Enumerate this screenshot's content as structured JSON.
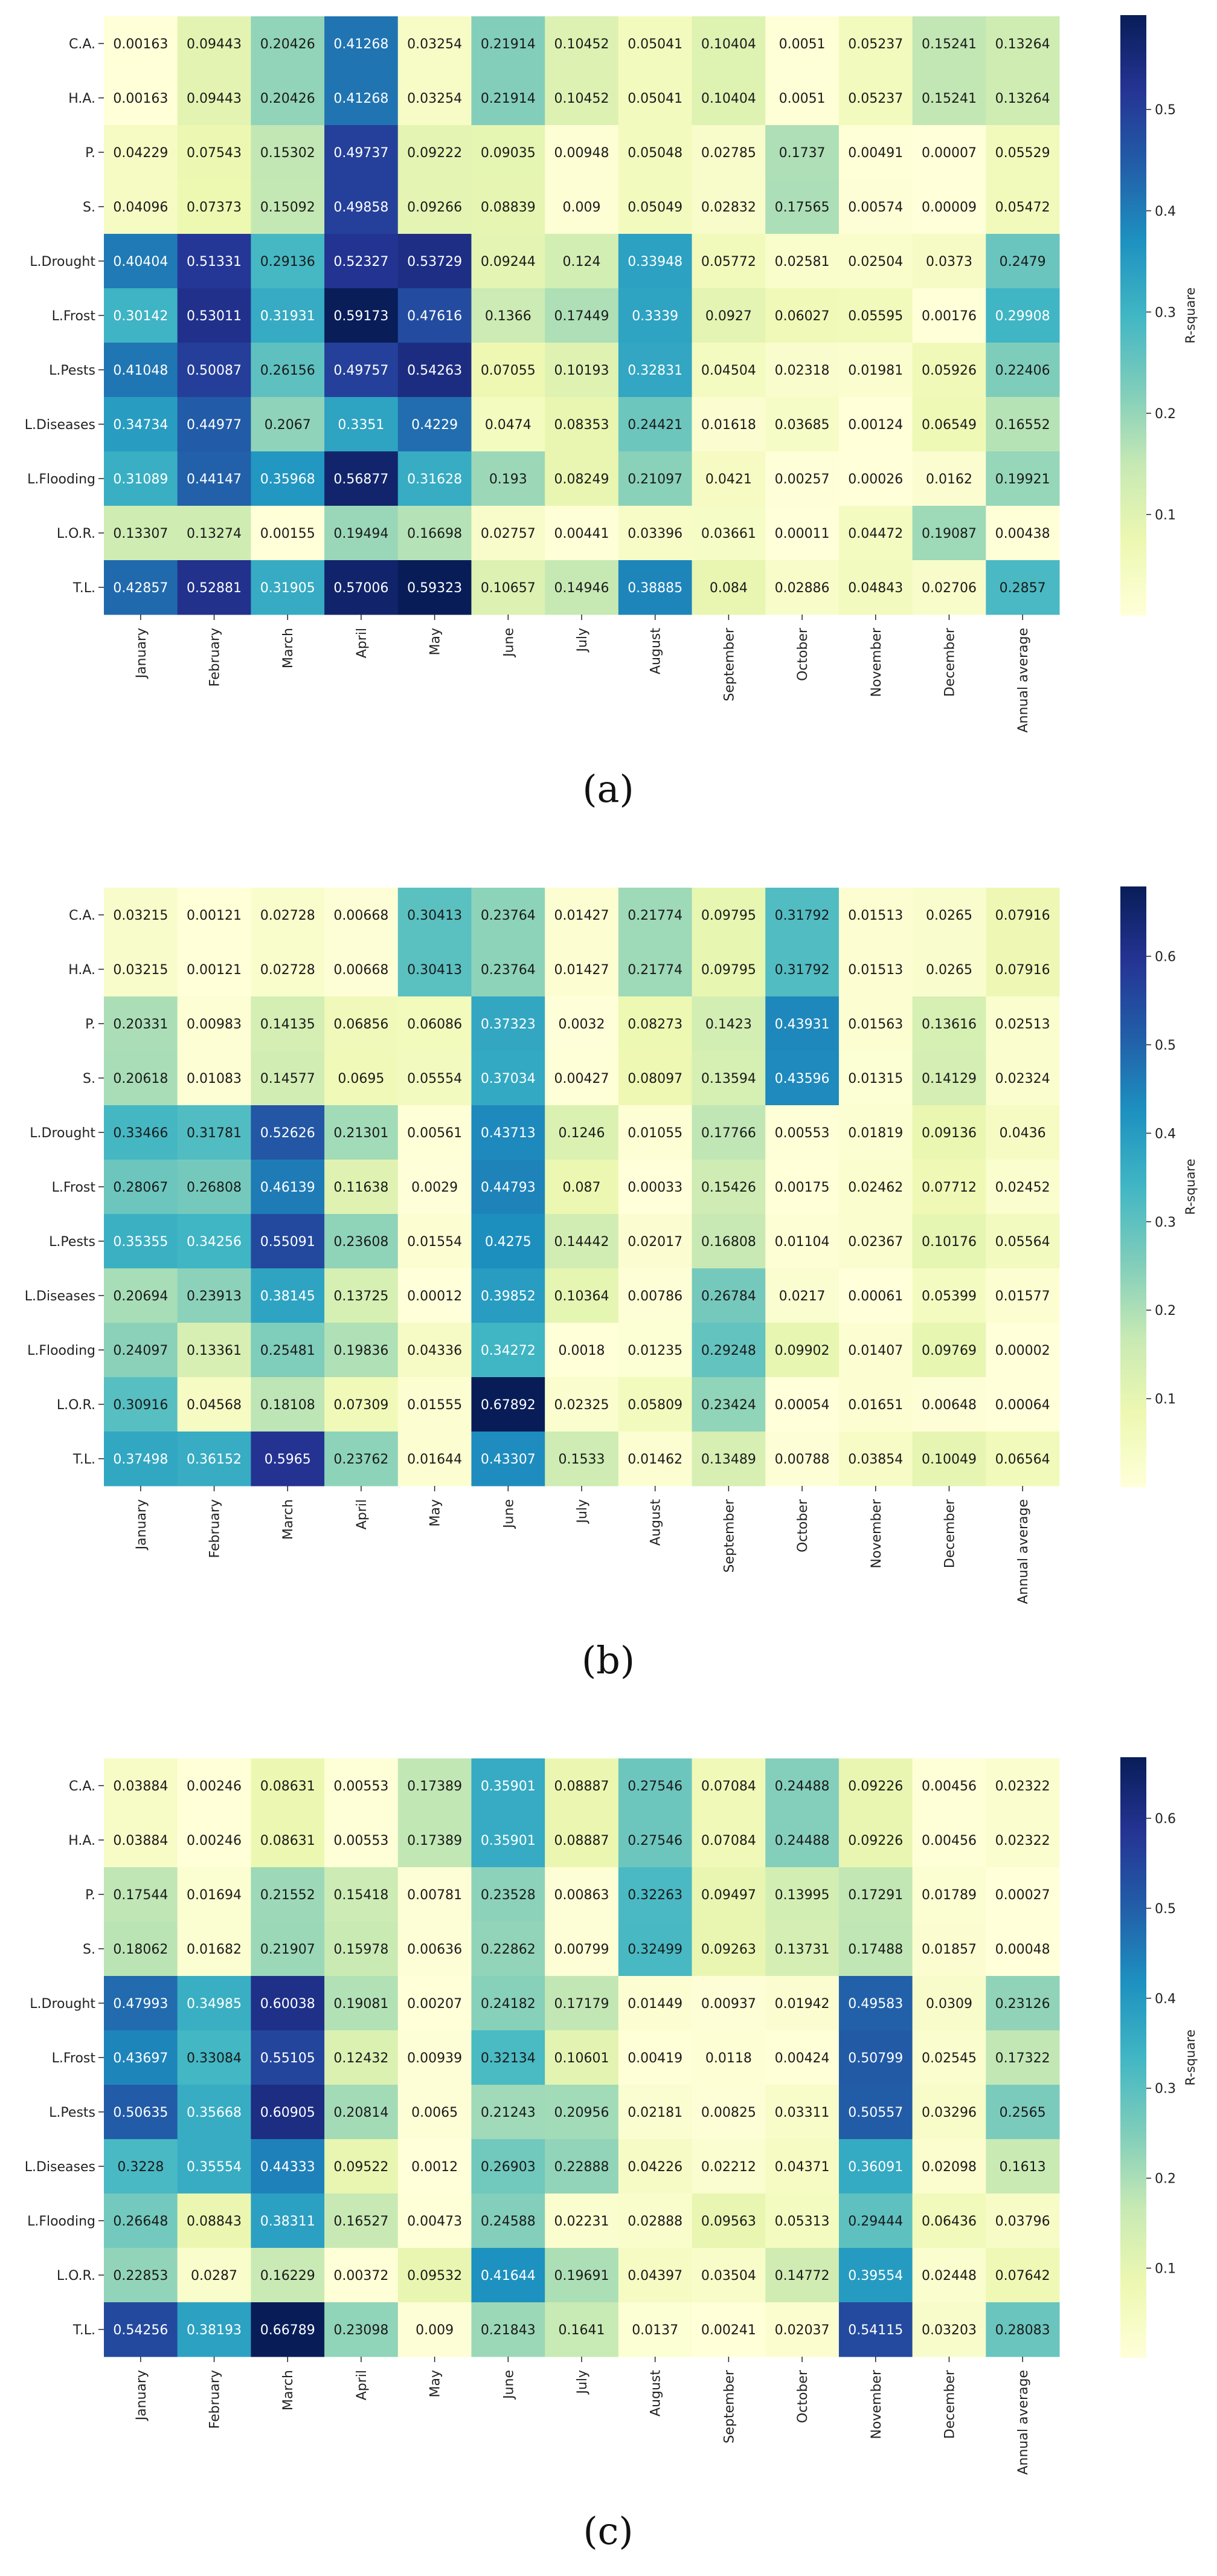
{
  "colormap": {
    "name": "YlGnBu",
    "stops": [
      "#ffffd9",
      "#edf8b1",
      "#c7e9b4",
      "#7fcdbb",
      "#41b6c4",
      "#1d91c0",
      "#225ea8",
      "#253494",
      "#081d58"
    ]
  },
  "chart_data": [
    {
      "type": "heatmap",
      "caption": "(a)",
      "colorbar_label": "R-square",
      "vmin": 1e-05,
      "vmax": 0.59323,
      "colorbar_ticks": [
        "0.1",
        "0.2",
        "0.3",
        "0.4",
        "0.5"
      ],
      "rows": [
        "C.A.",
        "H.A.",
        "P.",
        "S.",
        "L.Drought",
        "L.Frost",
        "L.Pests",
        "L.Diseases",
        "L.Flooding",
        "L.O.R.",
        "T.L."
      ],
      "columns": [
        "January",
        "February",
        "March",
        "April",
        "May",
        "June",
        "July",
        "August",
        "September",
        "October",
        "November",
        "December",
        "Annual average"
      ],
      "values": [
        [
          "0.00163",
          "0.09443",
          "0.20426",
          "0.41268",
          "0.03254",
          "0.21914",
          "0.10452",
          "0.05041",
          "0.10404",
          "0.0051",
          "0.05237",
          "0.15241",
          "0.13264"
        ],
        [
          "0.00163",
          "0.09443",
          "0.20426",
          "0.41268",
          "0.03254",
          "0.21914",
          "0.10452",
          "0.05041",
          "0.10404",
          "0.0051",
          "0.05237",
          "0.15241",
          "0.13264"
        ],
        [
          "0.04229",
          "0.07543",
          "0.15302",
          "0.49737",
          "0.09222",
          "0.09035",
          "0.00948",
          "0.05048",
          "0.02785",
          "0.1737",
          "0.00491",
          "0.00007",
          "0.05529"
        ],
        [
          "0.04096",
          "0.07373",
          "0.15092",
          "0.49858",
          "0.09266",
          "0.08839",
          "0.009",
          "0.05049",
          "0.02832",
          "0.17565",
          "0.00574",
          "0.00009",
          "0.05472"
        ],
        [
          "0.40404",
          "0.51331",
          "0.29136",
          "0.52327",
          "0.53729",
          "0.09244",
          "0.124",
          "0.33948",
          "0.05772",
          "0.02581",
          "0.02504",
          "0.0373",
          "0.2479"
        ],
        [
          "0.30142",
          "0.53011",
          "0.31931",
          "0.59173",
          "0.47616",
          "0.1366",
          "0.17449",
          "0.3339",
          "0.0927",
          "0.06027",
          "0.05595",
          "0.00176",
          "0.29908"
        ],
        [
          "0.41048",
          "0.50087",
          "0.26156",
          "0.49757",
          "0.54263",
          "0.07055",
          "0.10193",
          "0.32831",
          "0.04504",
          "0.02318",
          "0.01981",
          "0.05926",
          "0.22406"
        ],
        [
          "0.34734",
          "0.44977",
          "0.2067",
          "0.3351",
          "0.4229",
          "0.0474",
          "0.08353",
          "0.24421",
          "0.01618",
          "0.03685",
          "0.00124",
          "0.06549",
          "0.16552"
        ],
        [
          "0.31089",
          "0.44147",
          "0.35968",
          "0.56877",
          "0.31628",
          "0.193",
          "0.08249",
          "0.21097",
          "0.0421",
          "0.00257",
          "0.00026",
          "0.0162",
          "0.19921"
        ],
        [
          "0.13307",
          "0.13274",
          "0.00155",
          "0.19494",
          "0.16698",
          "0.02757",
          "0.00441",
          "0.03396",
          "0.03661",
          "0.00011",
          "0.04472",
          "0.19087",
          "0.00438"
        ],
        [
          "0.42857",
          "0.52881",
          "0.31905",
          "0.57006",
          "0.59323",
          "0.10657",
          "0.14946",
          "0.38885",
          "0.084",
          "0.02886",
          "0.04843",
          "0.02706",
          "0.2857"
        ]
      ]
    },
    {
      "type": "heatmap",
      "caption": "(b)",
      "colorbar_label": "R-square",
      "vmin": 2e-05,
      "vmax": 0.67892,
      "colorbar_ticks": [
        "0.1",
        "0.2",
        "0.3",
        "0.4",
        "0.5",
        "0.6"
      ],
      "rows": [
        "C.A.",
        "H.A.",
        "P.",
        "S.",
        "L.Drought",
        "L.Frost",
        "L.Pests",
        "L.Diseases",
        "L.Flooding",
        "L.O.R.",
        "T.L."
      ],
      "columns": [
        "January",
        "February",
        "March",
        "April",
        "May",
        "June",
        "July",
        "August",
        "September",
        "October",
        "November",
        "December",
        "Annual average"
      ],
      "values": [
        [
          "0.03215",
          "0.00121",
          "0.02728",
          "0.00668",
          "0.30413",
          "0.23764",
          "0.01427",
          "0.21774",
          "0.09795",
          "0.31792",
          "0.01513",
          "0.0265",
          "0.07916"
        ],
        [
          "0.03215",
          "0.00121",
          "0.02728",
          "0.00668",
          "0.30413",
          "0.23764",
          "0.01427",
          "0.21774",
          "0.09795",
          "0.31792",
          "0.01513",
          "0.0265",
          "0.07916"
        ],
        [
          "0.20331",
          "0.00983",
          "0.14135",
          "0.06856",
          "0.06086",
          "0.37323",
          "0.0032",
          "0.08273",
          "0.1423",
          "0.43931",
          "0.01563",
          "0.13616",
          "0.02513"
        ],
        [
          "0.20618",
          "0.01083",
          "0.14577",
          "0.0695",
          "0.05554",
          "0.37034",
          "0.00427",
          "0.08097",
          "0.13594",
          "0.43596",
          "0.01315",
          "0.14129",
          "0.02324"
        ],
        [
          "0.33466",
          "0.31781",
          "0.52626",
          "0.21301",
          "0.00561",
          "0.43713",
          "0.1246",
          "0.01055",
          "0.17766",
          "0.00553",
          "0.01819",
          "0.09136",
          "0.0436"
        ],
        [
          "0.28067",
          "0.26808",
          "0.46139",
          "0.11638",
          "0.0029",
          "0.44793",
          "0.087",
          "0.00033",
          "0.15426",
          "0.00175",
          "0.02462",
          "0.07712",
          "0.02452"
        ],
        [
          "0.35355",
          "0.34256",
          "0.55091",
          "0.23608",
          "0.01554",
          "0.4275",
          "0.14442",
          "0.02017",
          "0.16808",
          "0.01104",
          "0.02367",
          "0.10176",
          "0.05564"
        ],
        [
          "0.20694",
          "0.23913",
          "0.38145",
          "0.13725",
          "0.00012",
          "0.39852",
          "0.10364",
          "0.00786",
          "0.26784",
          "0.0217",
          "0.00061",
          "0.05399",
          "0.01577"
        ],
        [
          "0.24097",
          "0.13361",
          "0.25481",
          "0.19836",
          "0.04336",
          "0.34272",
          "0.0018",
          "0.01235",
          "0.29248",
          "0.09902",
          "0.01407",
          "0.09769",
          "0.00002"
        ],
        [
          "0.30916",
          "0.04568",
          "0.18108",
          "0.07309",
          "0.01555",
          "0.67892",
          "0.02325",
          "0.05809",
          "0.23424",
          "0.00054",
          "0.01651",
          "0.00648",
          "0.00064"
        ],
        [
          "0.37498",
          "0.36152",
          "0.5965",
          "0.23762",
          "0.01644",
          "0.43307",
          "0.1533",
          "0.01462",
          "0.13489",
          "0.00788",
          "0.03854",
          "0.10049",
          "0.06564"
        ]
      ]
    },
    {
      "type": "heatmap",
      "caption": "(c)",
      "colorbar_label": "R-square",
      "vmin": 0.00027,
      "vmax": 0.66789,
      "colorbar_ticks": [
        "0.1",
        "0.2",
        "0.3",
        "0.4",
        "0.5",
        "0.6"
      ],
      "rows": [
        "C.A.",
        "H.A.",
        "P.",
        "S.",
        "L.Drought",
        "L.Frost",
        "L.Pests",
        "L.Diseases",
        "L.Flooding",
        "L.O.R.",
        "T.L."
      ],
      "columns": [
        "January",
        "February",
        "March",
        "April",
        "May",
        "June",
        "July",
        "August",
        "September",
        "October",
        "November",
        "December",
        "Annual average"
      ],
      "values": [
        [
          "0.03884",
          "0.00246",
          "0.08631",
          "0.00553",
          "0.17389",
          "0.35901",
          "0.08887",
          "0.27546",
          "0.07084",
          "0.24488",
          "0.09226",
          "0.00456",
          "0.02322"
        ],
        [
          "0.03884",
          "0.00246",
          "0.08631",
          "0.00553",
          "0.17389",
          "0.35901",
          "0.08887",
          "0.27546",
          "0.07084",
          "0.24488",
          "0.09226",
          "0.00456",
          "0.02322"
        ],
        [
          "0.17544",
          "0.01694",
          "0.21552",
          "0.15418",
          "0.00781",
          "0.23528",
          "0.00863",
          "0.32263",
          "0.09497",
          "0.13995",
          "0.17291",
          "0.01789",
          "0.00027"
        ],
        [
          "0.18062",
          "0.01682",
          "0.21907",
          "0.15978",
          "0.00636",
          "0.22862",
          "0.00799",
          "0.32499",
          "0.09263",
          "0.13731",
          "0.17488",
          "0.01857",
          "0.00048"
        ],
        [
          "0.47993",
          "0.34985",
          "0.60038",
          "0.19081",
          "0.00207",
          "0.24182",
          "0.17179",
          "0.01449",
          "0.00937",
          "0.01942",
          "0.49583",
          "0.0309",
          "0.23126"
        ],
        [
          "0.43697",
          "0.33084",
          "0.55105",
          "0.12432",
          "0.00939",
          "0.32134",
          "0.10601",
          "0.00419",
          "0.0118",
          "0.00424",
          "0.50799",
          "0.02545",
          "0.17322"
        ],
        [
          "0.50635",
          "0.35668",
          "0.60905",
          "0.20814",
          "0.0065",
          "0.21243",
          "0.20956",
          "0.02181",
          "0.00825",
          "0.03311",
          "0.50557",
          "0.03296",
          "0.2565"
        ],
        [
          "0.3228",
          "0.35554",
          "0.44333",
          "0.09522",
          "0.0012",
          "0.26903",
          "0.22888",
          "0.04226",
          "0.02212",
          "0.04371",
          "0.36091",
          "0.02098",
          "0.1613"
        ],
        [
          "0.26648",
          "0.08843",
          "0.38311",
          "0.16527",
          "0.00473",
          "0.24588",
          "0.02231",
          "0.02888",
          "0.09563",
          "0.05313",
          "0.29444",
          "0.06436",
          "0.03796"
        ],
        [
          "0.22853",
          "0.0287",
          "0.16229",
          "0.00372",
          "0.09532",
          "0.41644",
          "0.19691",
          "0.04397",
          "0.03504",
          "0.14772",
          "0.39554",
          "0.02448",
          "0.07642"
        ],
        [
          "0.54256",
          "0.38193",
          "0.66789",
          "0.23098",
          "0.009",
          "0.21843",
          "0.1641",
          "0.0137",
          "0.00241",
          "0.02037",
          "0.54115",
          "0.03203",
          "0.28083"
        ]
      ]
    }
  ]
}
